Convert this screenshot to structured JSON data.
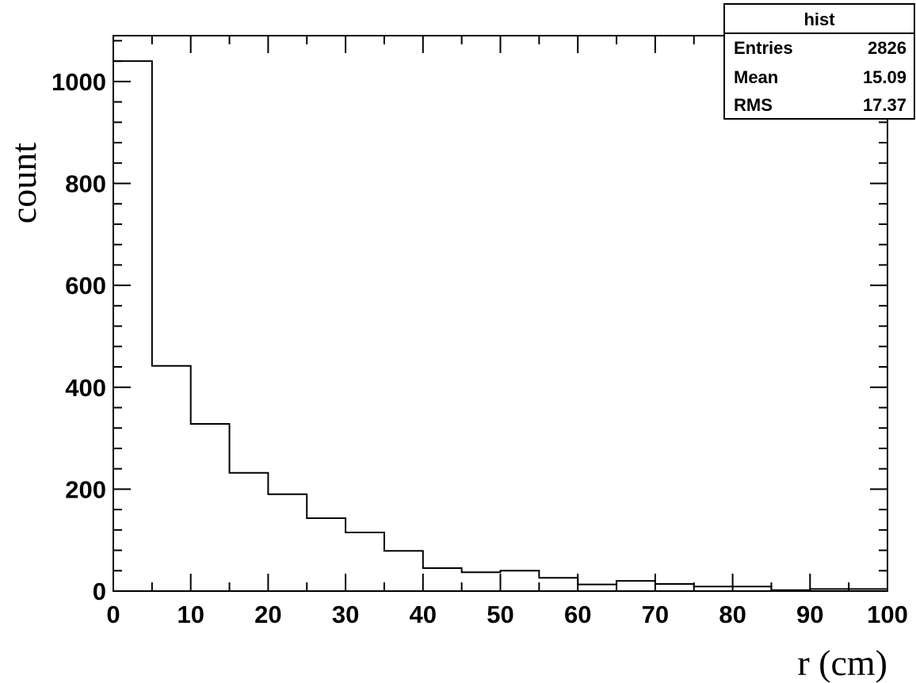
{
  "chart_data": {
    "type": "bar",
    "histogram": true,
    "bin_edges": [
      0,
      5,
      10,
      15,
      20,
      25,
      30,
      35,
      40,
      45,
      50,
      55,
      60,
      65,
      70,
      75,
      80,
      85,
      90,
      95,
      100
    ],
    "values": [
      1040,
      442,
      328,
      232,
      190,
      143,
      115,
      79,
      45,
      37,
      40,
      26,
      13,
      20,
      14,
      9,
      9,
      2,
      4,
      4
    ],
    "xlabel": "r (cm)",
    "ylabel": "count",
    "xlim": [
      0,
      100
    ],
    "ylim": [
      0,
      1090
    ],
    "x_ticks": [
      "0",
      "10",
      "20",
      "30",
      "40",
      "50",
      "60",
      "70",
      "80",
      "90",
      "100"
    ],
    "y_ticks": [
      "0",
      "200",
      "400",
      "600",
      "800",
      "1000"
    ],
    "grid": false,
    "stats_box": {
      "title": "hist",
      "rows": [
        {
          "label": "Entries",
          "value": "2826"
        },
        {
          "label": "Mean",
          "value": "15.09"
        },
        {
          "label": "RMS",
          "value": "17.37"
        }
      ],
      "placement": "top-right"
    },
    "colors": {
      "line": "#000000",
      "background": "#ffffff"
    }
  }
}
